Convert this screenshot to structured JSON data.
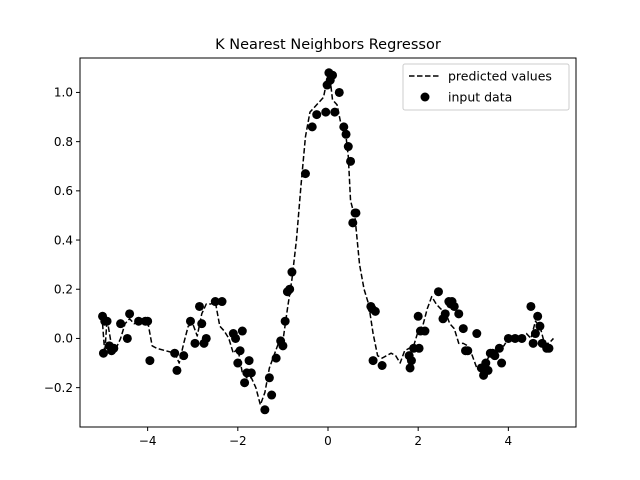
{
  "chart_data": {
    "type": "scatter",
    "title": "K Nearest Neighbors Regressor",
    "xlabel": "",
    "ylabel": "",
    "xlim": [
      -5.5,
      5.5
    ],
    "ylim": [
      -0.36,
      1.14
    ],
    "xticks": [
      -4,
      -2,
      0,
      2,
      4
    ],
    "xtick_labels": [
      "−4",
      "−2",
      "0",
      "2",
      "4"
    ],
    "yticks": [
      -0.2,
      0.0,
      0.2,
      0.4,
      0.6,
      0.8,
      1.0
    ],
    "ytick_labels": [
      "−0.2",
      "0.0",
      "0.2",
      "0.4",
      "0.6",
      "0.8",
      "1.0"
    ],
    "grid": false,
    "legend": {
      "position": "top-right",
      "entries": [
        {
          "label": "predicted values",
          "style": "dashed-line"
        },
        {
          "label": "input data",
          "style": "dot"
        }
      ]
    },
    "colors": {
      "line": "#000000",
      "points": "#000000"
    },
    "series": [
      {
        "name": "predicted values",
        "type": "line",
        "style": "dashed",
        "x": [
          -5.0,
          -4.95,
          -4.9,
          -4.8,
          -4.7,
          -4.6,
          -4.5,
          -4.4,
          -4.3,
          -4.2,
          -4.1,
          -4.0,
          -3.9,
          -3.8,
          -3.6,
          -3.4,
          -3.3,
          -3.2,
          -3.1,
          -3.0,
          -2.9,
          -2.8,
          -2.7,
          -2.6,
          -2.5,
          -2.4,
          -2.3,
          -2.2,
          -2.1,
          -2.0,
          -1.9,
          -1.8,
          -1.7,
          -1.6,
          -1.5,
          -1.4,
          -1.3,
          -1.2,
          -1.1,
          -1.0,
          -0.9,
          -0.8,
          -0.7,
          -0.6,
          -0.5,
          -0.4,
          -0.3,
          -0.2,
          -0.1,
          0.0,
          0.05,
          0.1,
          0.2,
          0.3,
          0.4,
          0.45,
          0.5,
          0.6,
          0.7,
          0.8,
          0.9,
          1.0,
          1.1,
          1.2,
          1.3,
          1.4,
          1.5,
          1.6,
          1.7,
          1.8,
          1.9,
          2.0,
          2.1,
          2.2,
          2.3,
          2.4,
          2.5,
          2.6,
          2.7,
          2.8,
          2.9,
          3.0,
          3.1,
          3.2,
          3.3,
          3.4,
          3.5,
          3.6,
          3.7,
          3.8,
          3.9,
          4.0,
          4.1,
          4.2,
          4.3,
          4.4,
          4.5,
          4.6,
          4.7,
          4.8,
          4.9,
          5.0
        ],
        "y": [
          0.06,
          -0.06,
          0.08,
          -0.03,
          -0.04,
          0.0,
          0.06,
          0.08,
          0.06,
          0.07,
          0.08,
          0.07,
          -0.03,
          -0.04,
          -0.05,
          -0.06,
          -0.1,
          -0.02,
          0.05,
          0.06,
          0.01,
          0.1,
          0.14,
          0.14,
          0.15,
          0.05,
          0.03,
          0.0,
          -0.06,
          -0.04,
          -0.14,
          -0.16,
          -0.16,
          -0.2,
          -0.27,
          -0.22,
          -0.12,
          -0.07,
          -0.02,
          -0.01,
          0.12,
          0.24,
          0.4,
          0.62,
          0.82,
          0.92,
          0.94,
          0.96,
          0.98,
          1.07,
          1.05,
          0.97,
          0.95,
          0.86,
          0.82,
          0.74,
          0.56,
          0.49,
          0.3,
          0.2,
          0.14,
          0.02,
          -0.07,
          -0.08,
          -0.07,
          -0.06,
          -0.07,
          -0.1,
          -0.05,
          -0.04,
          -0.03,
          0.03,
          0.05,
          0.12,
          0.17,
          0.14,
          0.12,
          0.11,
          0.06,
          0.04,
          -0.02,
          -0.02,
          -0.03,
          -0.07,
          -0.12,
          -0.13,
          -0.1,
          -0.06,
          -0.07,
          -0.04,
          -0.03,
          0.0,
          0.01,
          0.01,
          0.0,
          0.02,
          0.0,
          0.07,
          0.05,
          -0.02,
          -0.02,
          0.0
        ]
      },
      {
        "name": "input data",
        "type": "scatter",
        "x": [
          -5.0,
          -4.98,
          -4.95,
          -4.9,
          -4.85,
          -4.8,
          -4.75,
          -4.6,
          -4.45,
          -4.4,
          -4.2,
          -4.05,
          -4.0,
          -3.95,
          -3.4,
          -3.35,
          -3.2,
          -3.05,
          -2.95,
          -2.85,
          -2.8,
          -2.75,
          -2.7,
          -2.5,
          -2.35,
          -2.1,
          -2.05,
          -2.0,
          -1.95,
          -1.9,
          -1.85,
          -1.8,
          -1.75,
          -1.7,
          -1.4,
          -1.3,
          -1.25,
          -1.15,
          -1.05,
          -1.0,
          -0.95,
          -0.9,
          -0.85,
          -0.8,
          -0.5,
          -0.35,
          -0.25,
          -0.05,
          -0.02,
          0.02,
          0.05,
          0.1,
          0.15,
          0.25,
          0.35,
          0.4,
          0.45,
          0.5,
          0.55,
          0.6,
          0.62,
          0.95,
          0.98,
          1.0,
          1.05,
          1.2,
          1.8,
          1.82,
          1.85,
          1.9,
          2.0,
          2.02,
          2.05,
          2.15,
          2.45,
          2.55,
          2.6,
          2.68,
          2.72,
          2.75,
          2.8,
          2.9,
          3.0,
          3.05,
          3.1,
          3.3,
          3.4,
          3.45,
          3.5,
          3.55,
          3.6,
          3.65,
          3.7,
          3.8,
          3.85,
          4.0,
          4.15,
          4.3,
          4.5,
          4.55,
          4.6,
          4.65,
          4.7,
          4.75,
          4.85,
          4.9
        ],
        "y": [
          0.09,
          -0.06,
          0.07,
          0.07,
          -0.03,
          -0.05,
          -0.04,
          0.06,
          0.0,
          0.1,
          0.07,
          0.07,
          0.07,
          -0.09,
          -0.06,
          -0.13,
          -0.07,
          0.07,
          -0.02,
          0.13,
          0.06,
          -0.02,
          0.0,
          0.15,
          0.15,
          0.02,
          0.0,
          -0.1,
          -0.05,
          0.03,
          -0.18,
          -0.14,
          -0.09,
          -0.14,
          -0.29,
          -0.16,
          -0.23,
          -0.08,
          -0.01,
          -0.03,
          0.07,
          0.19,
          0.2,
          0.27,
          0.67,
          0.86,
          0.91,
          0.92,
          1.03,
          1.08,
          1.05,
          1.07,
          0.92,
          1.0,
          0.86,
          0.83,
          0.78,
          0.72,
          0.47,
          0.51,
          0.51,
          0.13,
          0.12,
          -0.09,
          0.11,
          -0.11,
          -0.07,
          -0.12,
          -0.09,
          -0.04,
          0.09,
          -0.04,
          0.03,
          0.03,
          0.19,
          0.08,
          0.1,
          0.15,
          0.14,
          0.15,
          0.13,
          0.1,
          0.04,
          -0.05,
          -0.05,
          0.02,
          -0.12,
          -0.15,
          -0.1,
          -0.13,
          -0.06,
          -0.06,
          -0.07,
          -0.04,
          -0.1,
          0.0,
          0.0,
          0.0,
          0.13,
          -0.02,
          0.02,
          0.09,
          0.05,
          -0.02,
          -0.04,
          -0.04
        ]
      }
    ]
  }
}
